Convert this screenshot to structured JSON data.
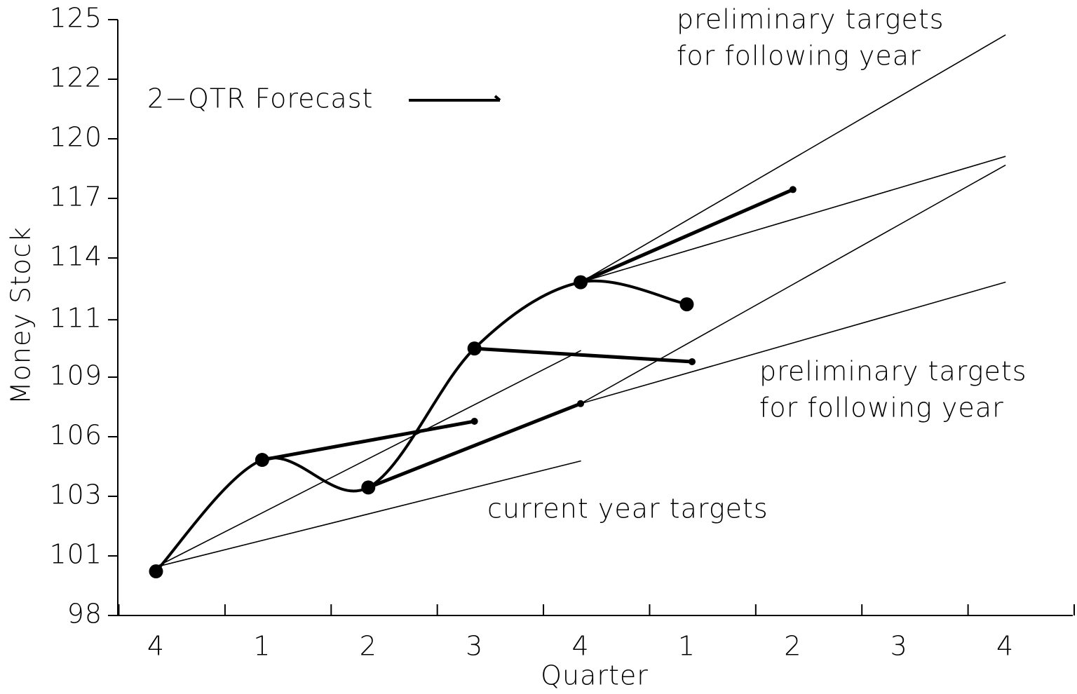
{
  "chart_data": {
    "type": "line",
    "xlabel": "Quarter",
    "ylabel": "Money Stock",
    "xlim": [
      -0.36,
      8.65
    ],
    "ylim": [
      98,
      125
    ],
    "xticks": [
      {
        "value": 0,
        "label": "4"
      },
      {
        "value": 1,
        "label": "1"
      },
      {
        "value": 2,
        "label": "2"
      },
      {
        "value": 3,
        "label": "3"
      },
      {
        "value": 4,
        "label": "4"
      },
      {
        "value": 5,
        "label": "1"
      },
      {
        "value": 6,
        "label": "2"
      },
      {
        "value": 7,
        "label": "3"
      },
      {
        "value": 8,
        "label": "4"
      }
    ],
    "xtick_marks": [
      -0.35,
      0.65,
      1.65,
      2.65,
      3.65,
      4.65,
      5.65,
      6.65,
      7.65,
      8.65
    ],
    "yticks": [
      98,
      {
        "value": 100.7,
        "label": "101"
      },
      {
        "value": 103.4,
        "label": "103"
      },
      {
        "value": 106.1,
        "label": "106"
      },
      {
        "value": 108.8,
        "label": "109"
      },
      {
        "value": 111.4,
        "label": "111"
      },
      {
        "value": 114.2,
        "label": "114"
      },
      {
        "value": 116.9,
        "label": "117"
      },
      {
        "value": 119.6,
        "label": "120"
      },
      {
        "value": 122.3,
        "label": "122"
      },
      125
    ],
    "color": "#000000",
    "series": [
      {
        "x": [
          0,
          1,
          2,
          3,
          4,
          5
        ],
        "values": [
          100.0,
          105.05,
          103.8,
          110.1,
          113.1,
          112.1
        ]
      }
    ],
    "forecasts": {
      "name": "2−QTR Forecast",
      "lines": [
        {
          "x": [
            1,
            3
          ],
          "values": [
            105.05,
            106.8
          ]
        },
        {
          "x": [
            2,
            4
          ],
          "values": [
            103.8,
            107.6
          ]
        },
        {
          "x": [
            3,
            5.05
          ],
          "values": [
            110.1,
            109.5
          ]
        },
        {
          "x": [
            4,
            6
          ],
          "values": [
            113.1,
            117.3
          ]
        }
      ]
    },
    "targets": [
      {
        "x": [
          0,
          4
        ],
        "values": [
          100.2,
          105.0
        ]
      },
      {
        "x": [
          0,
          4
        ],
        "values": [
          100.2,
          110.0
        ]
      },
      {
        "x": [
          4,
          8
        ],
        "values": [
          113.1,
          124.3
        ]
      },
      {
        "x": [
          4,
          8
        ],
        "values": [
          113.1,
          118.8
        ]
      },
      {
        "x": [
          4,
          8
        ],
        "values": [
          107.6,
          118.4
        ]
      },
      {
        "x": [
          4,
          8
        ],
        "values": [
          107.6,
          113.1
        ]
      }
    ],
    "annotations": [
      [
        "preliminary targets",
        "for following year"
      ],
      [
        "preliminary targets",
        "for following year"
      ],
      [
        "current year targets"
      ]
    ]
  }
}
